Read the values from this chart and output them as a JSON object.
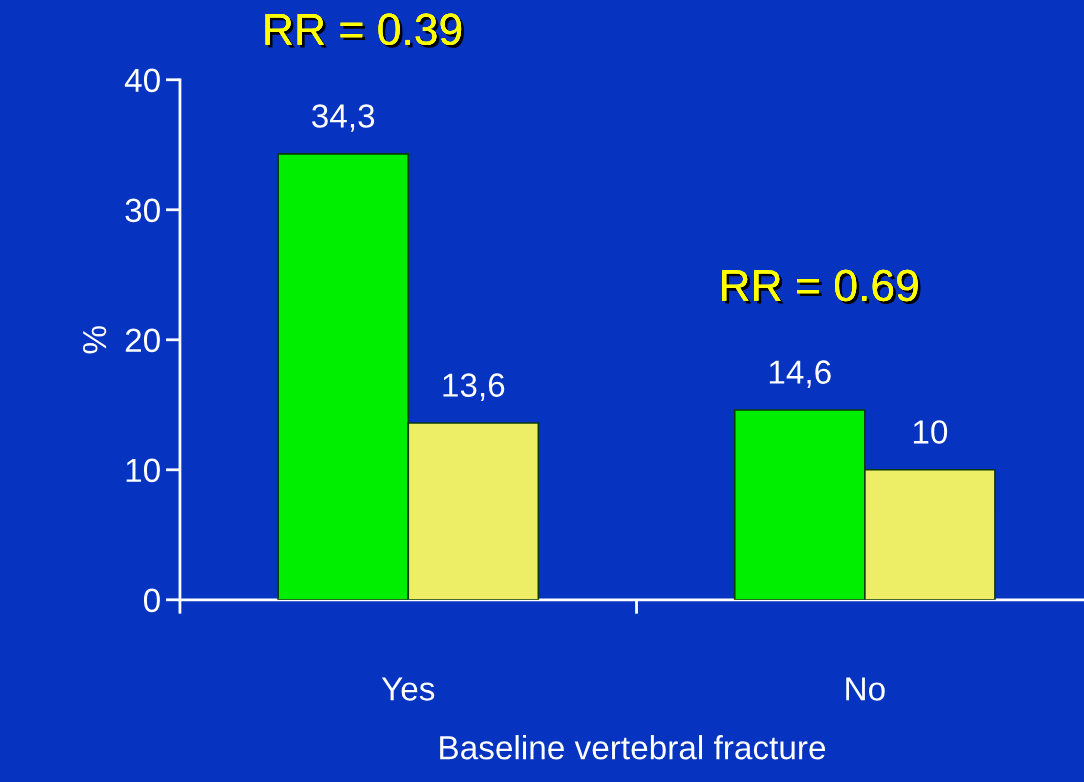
{
  "chart_data": {
    "type": "bar",
    "xlabel": "Baseline vertebral fracture",
    "ylabel": "%",
    "categories": [
      "Yes",
      "No"
    ],
    "series": [
      {
        "color": "#00ee00",
        "values": [
          34.3,
          14.6
        ],
        "value_labels": [
          "34,3",
          "14,6"
        ]
      },
      {
        "color": "#eeee66",
        "values": [
          13.6,
          10
        ],
        "value_labels": [
          "13,6",
          "10"
        ]
      }
    ],
    "annotations": [
      "RR = 0.39",
      "RR = 0.69"
    ],
    "ylim": [
      0,
      40
    ],
    "yticks": [
      0,
      10,
      20,
      30,
      40
    ],
    "grid": false,
    "legend": false
  }
}
